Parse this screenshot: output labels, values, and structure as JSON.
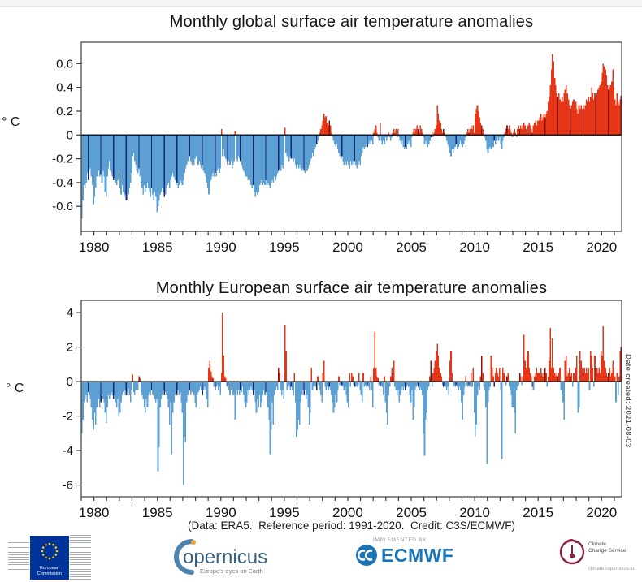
{
  "caption": "(Data: ERA5.  Reference period: 1991-2020.  Credit: C3S/ECMWF)",
  "date_note": "Date created: 2021-08-03",
  "colors": {
    "positive": "#e63617",
    "positive_dark": "#8c100c",
    "negative": "#5b9fd3",
    "negative_dark": "#16267d",
    "axis": "#3c3c3c",
    "zero_line": "#1a1a1a",
    "tick_text": "#141414"
  },
  "chart_data": [
    {
      "type": "bar",
      "title": "Monthly global surface air temperature anomalies",
      "ylabel": "° C",
      "yticks": [
        "0.6",
        "0.4",
        "0.2",
        "0",
        "-0.2",
        "-0.4",
        "-0.6"
      ],
      "ylim": [
        -0.81,
        0.78
      ],
      "x_start": "1979-01",
      "x_end": "2021-07",
      "xtick_labels": [
        "1980",
        "1985",
        "1990",
        "1995",
        "2000",
        "2005",
        "2010",
        "2015",
        "2020"
      ],
      "minor_xticks_every_year": true,
      "highlighted_month": "July",
      "legend": "red = positive anomaly, blue = negative anomaly, dark bars = July of each year",
      "values": [
        -0.7,
        -0.55,
        -0.42,
        -0.45,
        -0.4,
        -0.32,
        -0.38,
        -0.3,
        -0.28,
        -0.35,
        -0.42,
        -0.58,
        -0.52,
        -0.44,
        -0.35,
        -0.32,
        -0.3,
        -0.35,
        -0.33,
        -0.4,
        -0.3,
        -0.35,
        -0.48,
        -0.52,
        -0.35,
        -0.28,
        -0.22,
        -0.3,
        -0.32,
        -0.35,
        -0.38,
        -0.36,
        -0.4,
        -0.42,
        -0.38,
        -0.3,
        -0.45,
        -0.5,
        -0.42,
        -0.48,
        -0.52,
        -0.5,
        -0.55,
        -0.48,
        -0.5,
        -0.45,
        -0.4,
        -0.32,
        -0.18,
        -0.15,
        -0.22,
        -0.25,
        -0.3,
        -0.32,
        -0.28,
        -0.35,
        -0.4,
        -0.45,
        -0.5,
        -0.42,
        -0.48,
        -0.45,
        -0.4,
        -0.45,
        -0.48,
        -0.52,
        -0.45,
        -0.5,
        -0.55,
        -0.48,
        -0.52,
        -0.65,
        -0.6,
        -0.55,
        -0.5,
        -0.48,
        -0.45,
        -0.48,
        -0.52,
        -0.5,
        -0.45,
        -0.42,
        -0.4,
        -0.45,
        -0.38,
        -0.35,
        -0.32,
        -0.35,
        -0.38,
        -0.42,
        -0.4,
        -0.45,
        -0.42,
        -0.38,
        -0.4,
        -0.42,
        -0.38,
        -0.32,
        -0.28,
        -0.25,
        -0.22,
        -0.2,
        -0.18,
        -0.22,
        -0.25,
        -0.22,
        -0.25,
        -0.2,
        -0.18,
        -0.22,
        -0.25,
        -0.22,
        -0.25,
        -0.28,
        -0.25,
        -0.3,
        -0.32,
        -0.35,
        -0.4,
        -0.45,
        -0.5,
        -0.45,
        -0.38,
        -0.35,
        -0.32,
        -0.35,
        -0.32,
        -0.35,
        -0.3,
        -0.28,
        -0.32,
        -0.28,
        0.05,
        -0.18,
        -0.12,
        -0.18,
        -0.2,
        -0.22,
        -0.25,
        -0.22,
        -0.25,
        -0.22,
        -0.28,
        -0.25,
        -0.22,
        0.03,
        -0.2,
        -0.22,
        -0.18,
        -0.2,
        -0.22,
        -0.25,
        -0.28,
        -0.3,
        -0.32,
        -0.35,
        -0.35,
        -0.38,
        -0.35,
        -0.38,
        -0.42,
        -0.45,
        -0.42,
        -0.48,
        -0.52,
        -0.48,
        -0.5,
        -0.48,
        -0.42,
        -0.4,
        -0.38,
        -0.42,
        -0.4,
        -0.42,
        -0.38,
        -0.42,
        -0.4,
        -0.42,
        -0.45,
        -0.4,
        -0.38,
        -0.4,
        -0.35,
        -0.38,
        -0.35,
        -0.32,
        -0.3,
        -0.28,
        -0.3,
        -0.25,
        -0.28,
        -0.25,
        0.06,
        -0.15,
        -0.18,
        -0.2,
        -0.22,
        -0.18,
        -0.2,
        -0.18,
        -0.22,
        -0.2,
        -0.25,
        -0.28,
        -0.25,
        -0.28,
        -0.25,
        -0.28,
        -0.3,
        -0.28,
        -0.3,
        -0.32,
        -0.28,
        -0.3,
        -0.28,
        -0.25,
        -0.22,
        -0.2,
        -0.15,
        -0.18,
        -0.12,
        -0.1,
        -0.08,
        -0.05,
        -0.02,
        0.02,
        0.05,
        0.08,
        0.12,
        0.18,
        0.15,
        0.16,
        0.1,
        0.08,
        0.12,
        0.08,
        0.02,
        -0.02,
        -0.05,
        -0.08,
        -0.1,
        -0.08,
        -0.12,
        -0.15,
        -0.18,
        -0.2,
        -0.18,
        -0.22,
        -0.25,
        -0.22,
        -0.25,
        -0.22,
        -0.25,
        -0.28,
        -0.22,
        -0.25,
        -0.22,
        -0.25,
        -0.22,
        -0.25,
        -0.28,
        -0.25,
        -0.22,
        -0.25,
        -0.18,
        -0.15,
        -0.1,
        -0.12,
        -0.1,
        -0.08,
        -0.1,
        -0.08,
        -0.05,
        -0.08,
        -0.05,
        -0.08,
        0.02,
        0.05,
        0.08,
        0.02,
        -0.02,
        -0.05,
        0.1,
        -0.05,
        -0.08,
        -0.05,
        -0.08,
        -0.02,
        -0.05,
        -0.02,
        0.02,
        -0.02,
        -0.05,
        -0.02,
        0.02,
        0.05,
        0.02,
        0.05,
        -0.02,
        0.05,
        -0.02,
        -0.05,
        -0.08,
        -0.05,
        -0.1,
        -0.12,
        -0.1,
        -0.12,
        -0.08,
        -0.05,
        -0.08,
        -0.1,
        -0.02,
        0.02,
        0.05,
        0.02,
        0.05,
        0.08,
        0.05,
        0.02,
        0.08,
        0.05,
        0.02,
        -0.02,
        -0.08,
        -0.05,
        -0.08,
        -0.1,
        -0.08,
        -0.05,
        -0.02,
        0.02,
        -0.02,
        0.02,
        0.05,
        0.08,
        0.25,
        0.18,
        0.12,
        0.1,
        0.05,
        0.02,
        0.05,
        0.02,
        -0.02,
        -0.05,
        -0.08,
        -0.1,
        -0.15,
        -0.18,
        -0.12,
        -0.15,
        -0.12,
        -0.1,
        -0.08,
        -0.12,
        -0.1,
        -0.08,
        -0.05,
        -0.08,
        -0.1,
        -0.08,
        -0.05,
        -0.02,
        0.02,
        0.05,
        0.02,
        0.05,
        0.08,
        0.05,
        0.08,
        0.02,
        0.18,
        0.22,
        0.25,
        0.2,
        0.15,
        0.1,
        0.08,
        0.05,
        0.02,
        -0.02,
        -0.05,
        -0.12,
        -0.15,
        -0.12,
        -0.1,
        -0.12,
        -0.08,
        -0.1,
        -0.05,
        -0.08,
        -0.05,
        -0.02,
        -0.05,
        -0.02,
        -0.08,
        -0.12,
        -0.05,
        -0.02,
        0.02,
        0.05,
        0.08,
        0.05,
        0.08,
        0.05,
        0.02,
        -0.02,
        0.02,
        0.05,
        0.02,
        -0.02,
        0.05,
        0.08,
        0.05,
        0.08,
        0.05,
        0.08,
        0.1,
        0.08,
        0.05,
        0.02,
        0.08,
        0.1,
        0.08,
        0.05,
        0.02,
        0.08,
        0.1,
        0.12,
        0.08,
        0.12,
        0.12,
        0.15,
        0.18,
        0.12,
        0.15,
        0.18,
        0.15,
        0.18,
        0.2,
        0.28,
        0.32,
        0.42,
        0.55,
        0.68,
        0.62,
        0.48,
        0.42,
        0.35,
        0.32,
        0.35,
        0.3,
        0.28,
        0.32,
        0.28,
        0.35,
        0.38,
        0.42,
        0.35,
        0.3,
        0.25,
        0.22,
        0.25,
        0.28,
        0.3,
        0.25,
        0.28,
        0.22,
        0.18,
        0.25,
        0.22,
        0.25,
        0.22,
        0.25,
        0.22,
        0.25,
        0.3,
        0.28,
        0.32,
        0.28,
        0.32,
        0.4,
        0.35,
        0.3,
        0.35,
        0.32,
        0.35,
        0.38,
        0.4,
        0.42,
        0.45,
        0.52,
        0.6,
        0.58,
        0.55,
        0.5,
        0.42,
        0.38,
        0.4,
        0.42,
        0.45,
        0.55,
        0.4,
        0.3,
        0.25,
        0.35,
        0.28,
        0.25,
        0.3,
        0.33
      ]
    },
    {
      "type": "bar",
      "title": "Monthly European surface air temperature anomalies",
      "ylabel": "° C",
      "yticks": [
        "4",
        "2",
        "0",
        "-2",
        "-4",
        "-6"
      ],
      "ylim": [
        -6.68,
        4.71
      ],
      "x_start": "1979-01",
      "x_end": "2021-07",
      "xtick_labels": [
        "1980",
        "1985",
        "1990",
        "1995",
        "2000",
        "2005",
        "2010",
        "2015",
        "2020"
      ],
      "minor_xticks_every_year": true,
      "highlighted_month": "July",
      "legend": "red = positive anomaly, blue = negative anomaly, dark bars = July of each year",
      "values": [
        -3.0,
        -2.2,
        -1.2,
        -1.0,
        -0.8,
        -1.2,
        -0.6,
        -0.8,
        -1.0,
        -1.5,
        -2.2,
        -2.8,
        -1.8,
        -2.5,
        -1.5,
        -1.2,
        -1.0,
        -1.5,
        -1.2,
        -0.8,
        -1.0,
        -1.2,
        -1.8,
        -2.4,
        -1.5,
        -0.8,
        -1.0,
        -0.8,
        -0.6,
        -0.8,
        -1.0,
        -0.8,
        -1.2,
        -1.5,
        -1.0,
        -2.0,
        -1.8,
        -1.2,
        -0.8,
        -0.6,
        -0.8,
        -0.5,
        -0.8,
        -0.6,
        -0.4,
        -0.8,
        -1.2,
        -0.5,
        0.4,
        -0.6,
        -0.8,
        -0.5,
        -0.3,
        -0.5,
        0.3,
        0.2,
        -0.6,
        -0.8,
        -1.0,
        -1.5,
        -1.8,
        -1.0,
        -1.5,
        -0.8,
        -0.6,
        -0.8,
        -0.5,
        -0.8,
        -0.6,
        -1.0,
        -1.2,
        -1.0,
        -5.2,
        -3.8,
        -1.5,
        -1.0,
        -0.8,
        -0.5,
        -0.8,
        -0.6,
        -0.8,
        -1.0,
        -1.5,
        -2.5,
        -1.2,
        -4.2,
        -1.8,
        -1.2,
        -0.8,
        -0.6,
        -0.8,
        -0.5,
        -0.8,
        -0.6,
        -1.2,
        -1.8,
        -6.0,
        -3.2,
        -3.5,
        -1.2,
        -0.8,
        -0.6,
        -0.5,
        -0.8,
        -0.6,
        -0.5,
        -0.8,
        -1.2,
        -1.5,
        -0.8,
        -0.6,
        -0.5,
        -0.3,
        -0.5,
        -0.8,
        -0.5,
        -0.3,
        -0.5,
        -1.0,
        -1.5,
        0.8,
        1.2,
        0.6,
        0.3,
        0.2,
        -0.3,
        -0.5,
        -0.3,
        -0.2,
        -0.5,
        -0.3,
        -0.8,
        0.5,
        4.0,
        1.5,
        0.3,
        0.2,
        -0.3,
        -0.2,
        -0.5,
        -0.8,
        -0.5,
        -0.3,
        -0.8,
        -0.8,
        -2.2,
        -0.5,
        -0.8,
        -0.5,
        -0.8,
        -0.5,
        -0.6,
        -0.3,
        -0.8,
        -1.2,
        -1.5,
        -1.2,
        -0.5,
        -0.8,
        -0.5,
        -0.3,
        -0.5,
        -0.8,
        -0.5,
        -1.2,
        -1.8,
        -1.0,
        -1.5,
        -0.8,
        -1.5,
        -1.2,
        -0.8,
        -0.5,
        -0.8,
        -0.6,
        -0.8,
        -1.5,
        -2.2,
        -4.2,
        -2.8,
        -1.2,
        -2.5,
        -0.8,
        -0.5,
        -0.3,
        -0.5,
        0.8,
        0.5,
        -0.5,
        -0.8,
        -0.5,
        -1.0,
        3.3,
        1.8,
        -0.5,
        -0.3,
        -0.2,
        -0.5,
        -0.3,
        -0.5,
        -0.8,
        0.5,
        -1.2,
        -3.2,
        -2.8,
        -2.2,
        -2.5,
        -1.2,
        -0.8,
        -0.5,
        -0.8,
        -0.5,
        -1.0,
        -0.8,
        -1.5,
        -2.5,
        -1.8,
        0.8,
        -0.5,
        -0.3,
        -0.2,
        -0.3,
        -0.5,
        0.3,
        -0.2,
        -0.5,
        -0.8,
        -1.2,
        0.5,
        1.2,
        -0.3,
        -0.5,
        -0.3,
        -0.5,
        -0.3,
        -0.5,
        -0.8,
        -1.2,
        -1.8,
        -1.5,
        -0.8,
        -1.2,
        -0.5,
        0.3,
        -0.2,
        -0.3,
        -0.2,
        -0.3,
        -0.5,
        -0.3,
        -0.8,
        -1.2,
        -1.5,
        0.5,
        -0.3,
        0.5,
        0.3,
        -0.2,
        -0.3,
        -0.2,
        -0.3,
        -0.2,
        0.5,
        -0.5,
        -0.8,
        -1.2,
        0.5,
        -0.3,
        -0.2,
        -0.3,
        -0.2,
        -0.3,
        -0.5,
        0.3,
        -0.5,
        -1.5,
        0.8,
        2.9,
        0.8,
        0.3,
        0.2,
        -0.2,
        -0.3,
        -0.2,
        -0.3,
        -0.8,
        0.3,
        -1.2,
        -1.8,
        -2.5,
        -0.8,
        -0.3,
        0.3,
        0.8,
        0.5,
        1.2,
        -0.3,
        -0.5,
        -0.8,
        -0.5,
        -1.2,
        -0.8,
        -0.5,
        -0.3,
        -0.5,
        -0.3,
        -0.5,
        -0.3,
        -0.2,
        -0.3,
        -0.8,
        -1.2,
        -0.5,
        -2.2,
        -1.5,
        -0.5,
        -0.3,
        -0.2,
        -0.3,
        -0.5,
        -0.3,
        -0.5,
        -0.8,
        -3.0,
        -4.3,
        -2.2,
        -1.8,
        -0.5,
        -0.3,
        0.3,
        1.2,
        -0.3,
        0.5,
        0.8,
        1.2,
        1.8,
        2.2,
        1.5,
        0.8,
        0.5,
        0.3,
        -0.2,
        -0.3,
        -0.2,
        -0.3,
        -0.5,
        -0.3,
        -0.8,
        1.2,
        1.8,
        0.5,
        -0.3,
        -0.2,
        -0.3,
        -0.2,
        -0.3,
        -0.5,
        -0.3,
        -0.5,
        -1.2,
        -2.2,
        -0.8,
        -0.3,
        0.3,
        -0.2,
        -0.3,
        -0.2,
        -0.3,
        0.5,
        -0.3,
        0.8,
        -1.8,
        -3.2,
        -2.5,
        -0.8,
        -0.3,
        -0.5,
        0.3,
        1.5,
        0.5,
        -0.3,
        -0.5,
        -1.5,
        -4.8,
        -1.2,
        -0.5,
        -0.3,
        1.5,
        0.8,
        0.3,
        -0.3,
        0.5,
        0.8,
        0.5,
        0.3,
        0.8,
        -0.5,
        -4.5,
        0.8,
        0.5,
        0.3,
        -0.2,
        0.3,
        0.5,
        -0.3,
        -0.5,
        -0.8,
        -1.5,
        -1.5,
        -1.8,
        -3.0,
        -0.5,
        -0.3,
        -0.2,
        0.5,
        0.3,
        -0.2,
        0.3,
        2.7,
        1.2,
        0.8,
        1.5,
        1.8,
        0.8,
        0.5,
        0.3,
        -0.3,
        -0.5,
        0.3,
        0.5,
        0.8,
        0.5,
        0.5,
        0.3,
        0.8,
        0.5,
        0.3,
        0.5,
        0.8,
        0.5,
        -0.3,
        0.3,
        1.2,
        3.1,
        0.8,
        2.5,
        0.8,
        0.5,
        0.3,
        0.5,
        0.3,
        0.5,
        0.8,
        -0.5,
        -0.8,
        -1.2,
        -2.2,
        1.2,
        1.5,
        0.3,
        0.5,
        0.8,
        0.3,
        0.5,
        -0.3,
        0.5,
        0.3,
        0.8,
        1.5,
        -1.8,
        -1.5,
        1.8,
        1.2,
        0.8,
        0.5,
        0.8,
        0.5,
        0.8,
        0.5,
        0.8,
        -0.5,
        1.8,
        1.5,
        0.8,
        -0.3,
        1.5,
        0.8,
        0.8,
        0.5,
        0.8,
        0.5,
        1.8,
        1.5,
        3.2,
        1.2,
        0.8,
        0.5,
        0.3,
        0.5,
        0.8,
        0.3,
        0.5,
        1.2,
        0.8,
        0.3,
        -1.2,
        0.5,
        -0.8,
        0.3,
        1.8,
        2.0
      ]
    }
  ],
  "logos": {
    "ec": {
      "line1": "European",
      "line2": "Commission"
    },
    "copernicus": {
      "wordmark": "opernicus",
      "tagline": "Europe's eyes on Earth"
    },
    "ecmwf": {
      "implemented_by": "IMPLEMENTED BY",
      "name": "ECMWF"
    },
    "ccs": {
      "line1": "Climate",
      "line2": "Change Service",
      "url": "climate.copernicus.eu"
    }
  }
}
